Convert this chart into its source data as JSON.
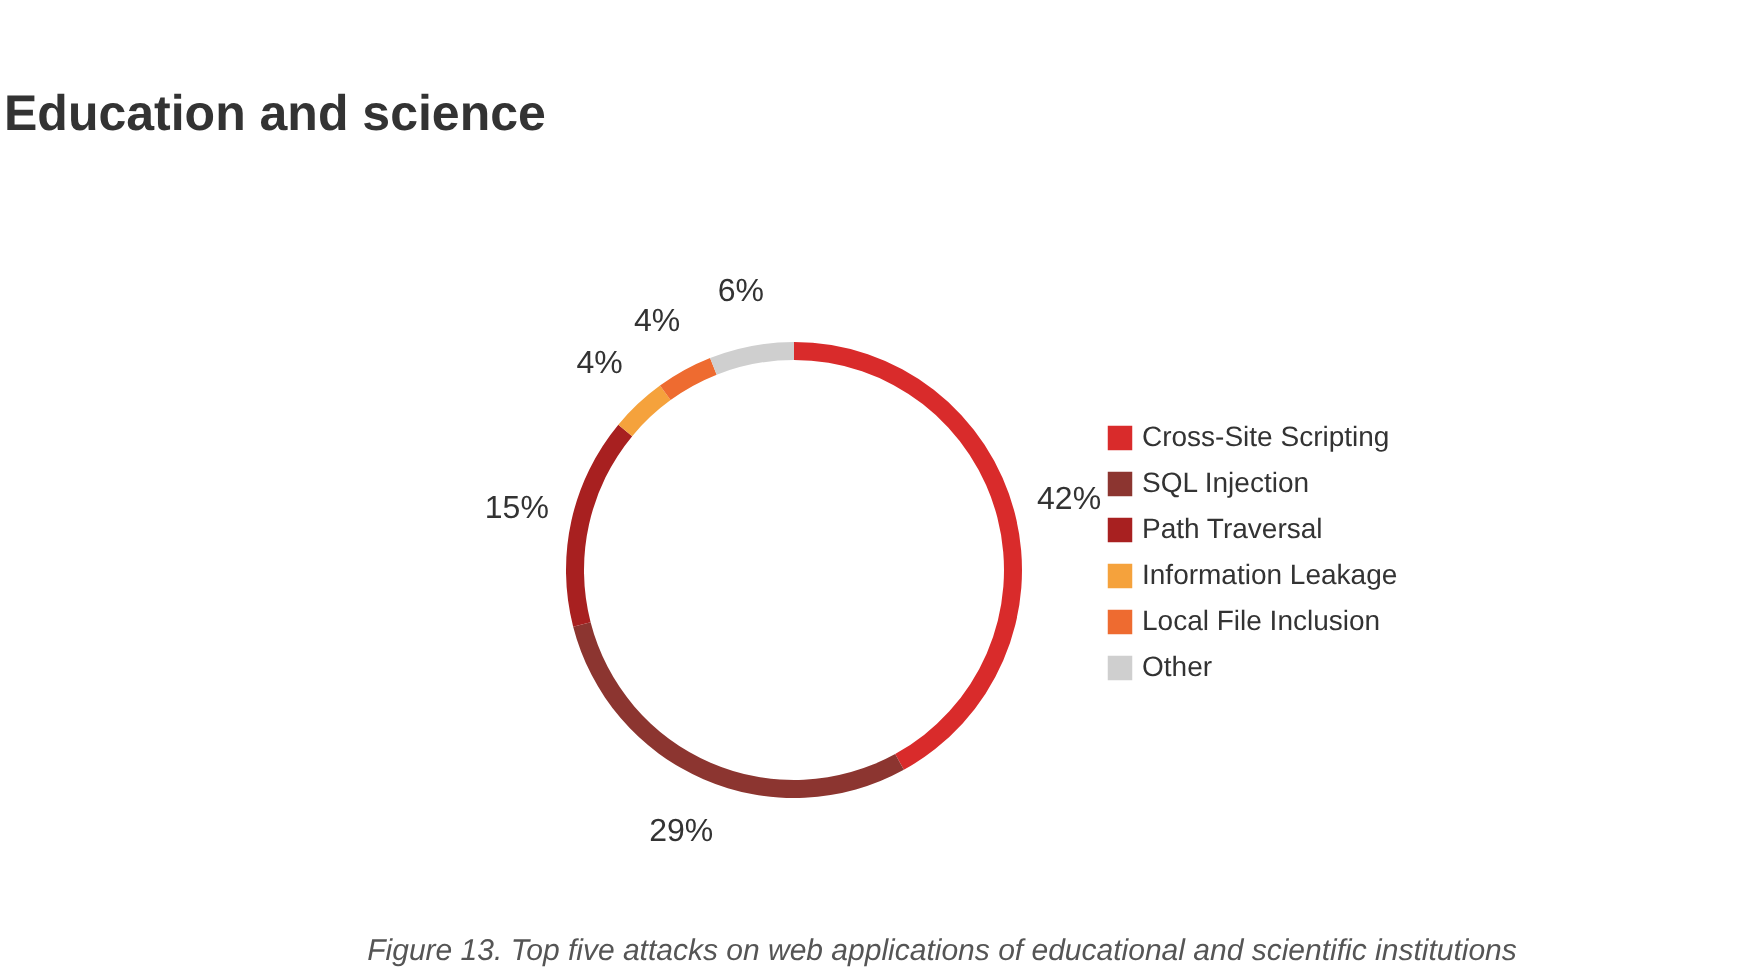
{
  "chart_data": {
    "type": "donut",
    "title": "Education and science",
    "categories": [
      "Cross-Site Scripting",
      "SQL Injection",
      "Path Traversal",
      "Information Leakage",
      "Local File Inclusion",
      "Other"
    ],
    "values": [
      42,
      29,
      15,
      4,
      4,
      6
    ],
    "value_labels": [
      "42%",
      "29%",
      "15%",
      "4%",
      "4%",
      "6%"
    ],
    "colors": [
      "#d92b2b",
      "#8c3530",
      "#a82020",
      "#f5a23c",
      "#ee6b30",
      "#cfcfcf"
    ],
    "legend": "right",
    "annotations": [
      "Figure 13. Top five attacks on web applications of educational and scientific institutions"
    ]
  }
}
